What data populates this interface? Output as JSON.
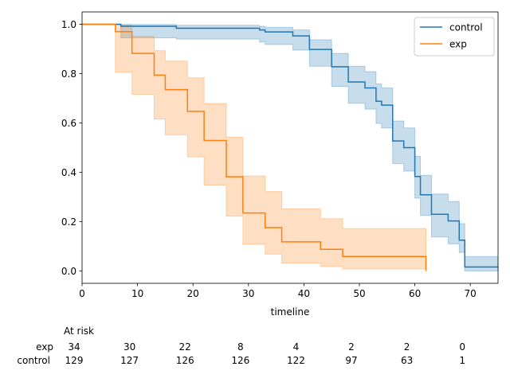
{
  "chart_data": {
    "type": "line",
    "subtype": "kaplan-meier-survival",
    "title": "",
    "xlabel": "timeline",
    "ylabel": "",
    "xlim": [
      0,
      75
    ],
    "ylim": [
      -0.05,
      1.05
    ],
    "xticks": [
      0,
      10,
      20,
      30,
      40,
      50,
      60,
      70
    ],
    "yticks": [
      0.0,
      0.2,
      0.4,
      0.6,
      0.8,
      1.0
    ],
    "legend_position": "top-right",
    "series": [
      {
        "name": "control",
        "color": "#1f77b4",
        "band_color": "#1f77b4",
        "steps": [
          [
            0,
            1.0
          ],
          [
            7,
            0.992
          ],
          [
            17,
            0.984
          ],
          [
            32,
            0.977
          ],
          [
            33,
            0.969
          ],
          [
            38,
            0.953
          ],
          [
            41,
            0.898
          ],
          [
            45,
            0.828
          ],
          [
            48,
            0.766
          ],
          [
            51,
            0.742
          ],
          [
            53,
            0.688
          ],
          [
            54,
            0.672
          ],
          [
            56,
            0.527
          ],
          [
            58,
            0.5
          ],
          [
            60,
            0.383
          ],
          [
            61,
            0.309
          ],
          [
            63,
            0.23
          ],
          [
            66,
            0.203
          ],
          [
            68,
            0.125
          ],
          [
            69,
            0.016
          ],
          [
            75,
            0.016
          ]
        ],
        "ci_lower": [
          [
            0,
            1.0
          ],
          [
            7,
            0.945
          ],
          [
            17,
            0.94
          ],
          [
            32,
            0.928
          ],
          [
            33,
            0.918
          ],
          [
            38,
            0.895
          ],
          [
            41,
            0.83
          ],
          [
            45,
            0.748
          ],
          [
            48,
            0.68
          ],
          [
            51,
            0.656
          ],
          [
            53,
            0.598
          ],
          [
            54,
            0.58
          ],
          [
            56,
            0.435
          ],
          [
            58,
            0.405
          ],
          [
            60,
            0.295
          ],
          [
            61,
            0.225
          ],
          [
            63,
            0.138
          ],
          [
            66,
            0.11
          ],
          [
            68,
            0.075
          ],
          [
            69,
            0.0
          ],
          [
            75,
            0.0
          ]
        ],
        "ci_upper": [
          [
            0,
            1.0
          ],
          [
            7,
            0.999
          ],
          [
            17,
            0.996
          ],
          [
            32,
            0.992
          ],
          [
            33,
            0.987
          ],
          [
            38,
            0.977
          ],
          [
            41,
            0.937
          ],
          [
            45,
            0.882
          ],
          [
            48,
            0.83
          ],
          [
            51,
            0.808
          ],
          [
            53,
            0.758
          ],
          [
            54,
            0.742
          ],
          [
            56,
            0.608
          ],
          [
            58,
            0.58
          ],
          [
            60,
            0.465
          ],
          [
            61,
            0.388
          ],
          [
            63,
            0.312
          ],
          [
            66,
            0.282
          ],
          [
            68,
            0.192
          ],
          [
            69,
            0.058
          ],
          [
            75,
            0.058
          ]
        ]
      },
      {
        "name": "exp",
        "color": "#ff7f0e",
        "band_color": "#ff7f0e",
        "steps": [
          [
            0,
            1.0
          ],
          [
            6,
            0.97
          ],
          [
            9,
            0.882
          ],
          [
            13,
            0.794
          ],
          [
            15,
            0.735
          ],
          [
            19,
            0.647
          ],
          [
            22,
            0.529
          ],
          [
            26,
            0.382
          ],
          [
            29,
            0.235
          ],
          [
            33,
            0.176
          ],
          [
            36,
            0.118
          ],
          [
            43,
            0.088
          ],
          [
            47,
            0.059
          ],
          [
            62,
            0.059
          ],
          [
            62,
            0.0
          ]
        ],
        "ci_lower": [
          [
            0,
            1.0
          ],
          [
            6,
            0.805
          ],
          [
            9,
            0.716
          ],
          [
            13,
            0.616
          ],
          [
            15,
            0.552
          ],
          [
            19,
            0.462
          ],
          [
            22,
            0.348
          ],
          [
            26,
            0.222
          ],
          [
            29,
            0.108
          ],
          [
            33,
            0.068
          ],
          [
            36,
            0.032
          ],
          [
            43,
            0.018
          ],
          [
            47,
            0.008
          ],
          [
            62,
            0.008
          ]
        ],
        "ci_upper": [
          [
            0,
            1.0
          ],
          [
            6,
            0.997
          ],
          [
            9,
            0.951
          ],
          [
            13,
            0.893
          ],
          [
            15,
            0.851
          ],
          [
            19,
            0.783
          ],
          [
            22,
            0.679
          ],
          [
            26,
            0.542
          ],
          [
            29,
            0.385
          ],
          [
            33,
            0.322
          ],
          [
            36,
            0.252
          ],
          [
            43,
            0.212
          ],
          [
            47,
            0.172
          ],
          [
            62,
            0.172
          ]
        ]
      }
    ],
    "at_risk": {
      "heading": "At risk",
      "times": [
        0,
        10,
        20,
        30,
        40,
        50,
        60,
        70
      ],
      "rows": [
        {
          "label": "exp",
          "counts": [
            "34",
            "30",
            "22",
            "8",
            "4",
            "2",
            "2",
            "0"
          ]
        },
        {
          "label": "control",
          "counts": [
            "129",
            "127",
            "126",
            "126",
            "122",
            "97",
            "63",
            "1"
          ]
        }
      ]
    }
  }
}
